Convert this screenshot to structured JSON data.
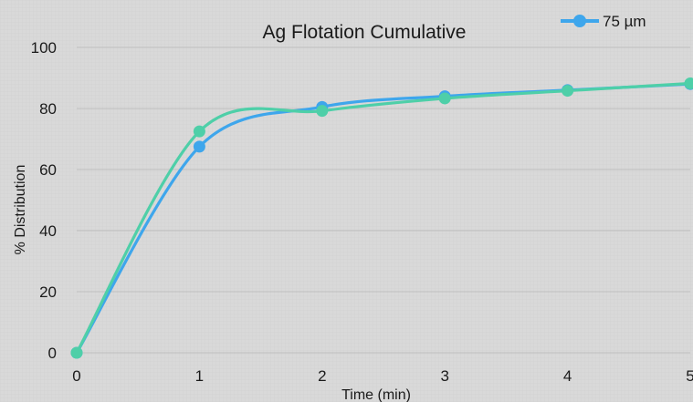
{
  "chart_data": {
    "type": "line",
    "title": "Ag Flotation Cumulative",
    "xlabel": "Time (min)",
    "ylabel": "% Distribution",
    "x": [
      0,
      1,
      2,
      3,
      4,
      5
    ],
    "xlim": [
      0,
      5
    ],
    "ylim": [
      0,
      100
    ],
    "x_ticks": [
      "0",
      "1",
      "2",
      "3",
      "4",
      "5"
    ],
    "y_ticks": [
      "0",
      "20",
      "40",
      "60",
      "80",
      "100"
    ],
    "grid": true,
    "smooth": true,
    "legend_position": "top-right",
    "series": [
      {
        "name": "75 µm",
        "color": "#3ea6ec",
        "values": [
          0,
          67.5,
          80.5,
          84,
          86,
          88
        ]
      },
      {
        "name": "",
        "color": "#4ecfa8",
        "values": [
          0,
          72.5,
          79.2,
          83.3,
          85.8,
          88.2
        ]
      }
    ]
  }
}
